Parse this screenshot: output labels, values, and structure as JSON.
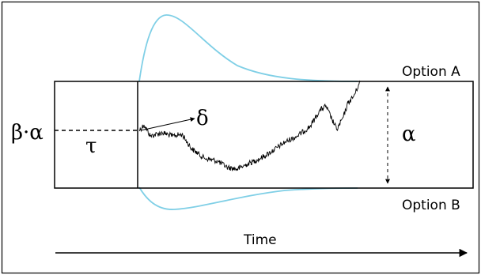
{
  "labels": {
    "option_a": "Option A",
    "option_b": "Option B",
    "start_point": "β·α",
    "non_decision_time": "τ",
    "drift_rate": "δ",
    "boundary_separation": "α",
    "time_axis": "Time"
  },
  "colors": {
    "distribution_curve": "#7fcfe6",
    "stroke": "#000000",
    "background": "#ffffff"
  }
}
